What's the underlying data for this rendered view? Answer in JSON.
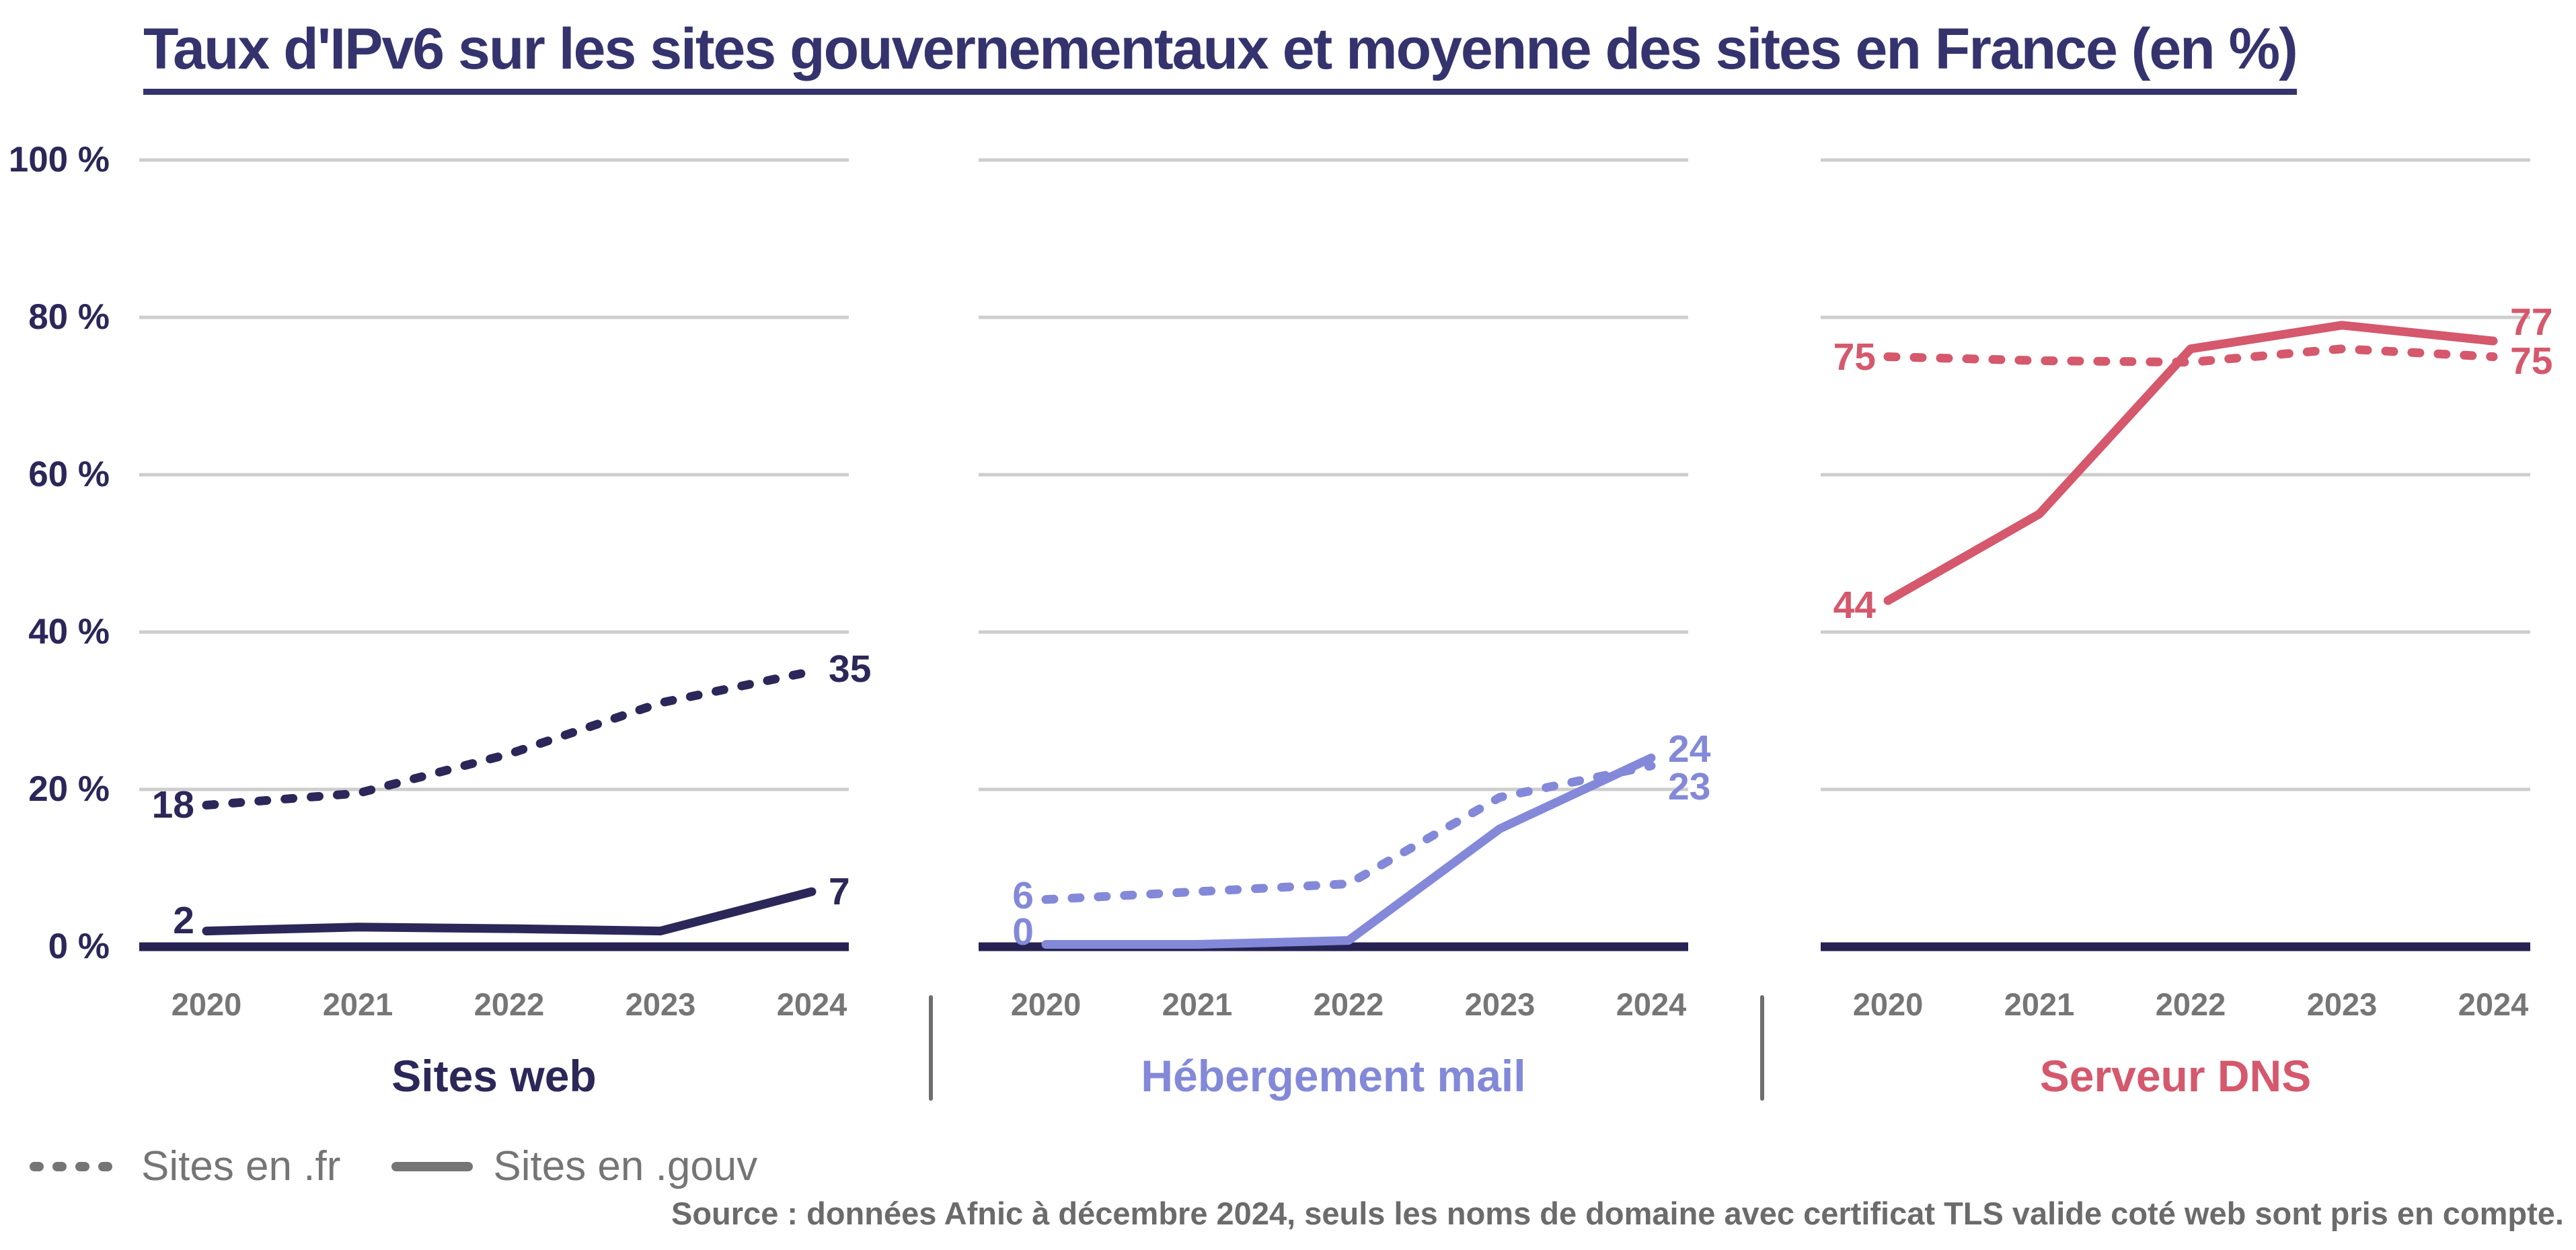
{
  "title": "Taux d'IPv6 sur les sites gouvernementaux et moyenne des sites en France (en %)",
  "y_axis": {
    "ticks": [
      "100 %",
      "80 %",
      "60 %",
      "40 %",
      "20 %",
      "0 %"
    ]
  },
  "legend": {
    "items": [
      {
        "label": "Sites en .fr",
        "marker": "dotted-line"
      },
      {
        "label": "Sites en .gouv",
        "marker": "solid-line"
      }
    ]
  },
  "source": "Source : données Afnic à décembre 2024, seuls les noms de domaine avec certificat TLS valide coté web sont pris en compte.",
  "colors": {
    "title": "#35336E",
    "navy": "#2B2759",
    "periwinkle": "#8389D8",
    "red": "#D5586C",
    "axis": "#262253",
    "grid": "#CDCDCD",
    "year_labels": "#767676",
    "divider": "#6E6E6E",
    "legend_text": "#757575",
    "source_text": "#6B6B6B"
  },
  "chart_data": {
    "type": "line",
    "categories": [
      "2020",
      "2021",
      "2022",
      "2023",
      "2024"
    ],
    "ylim": [
      0,
      100
    ],
    "unit": "%",
    "y_gridlines_percent": [
      100,
      80,
      60,
      40,
      20,
      0
    ],
    "legend_position": "bottom-left",
    "grid": "horizontal-only",
    "panels": [
      {
        "title": "Sites web",
        "color": "#2B2759",
        "series": [
          {
            "name": "Sites en .fr",
            "style": "dotted",
            "values": [
              18,
              19.5,
              24.5,
              31,
              35
            ],
            "first_value_label": "18",
            "last_value_label": "35"
          },
          {
            "name": "Sites en .gouv",
            "style": "solid",
            "values": [
              2,
              2.5,
              2.3,
              2,
              7
            ],
            "first_value_label": "2",
            "last_value_label": "7"
          }
        ]
      },
      {
        "title": "Hébergement mail",
        "color": "#8389D8",
        "series": [
          {
            "name": "Sites en .fr",
            "style": "dotted",
            "values": [
              6,
              7,
              8,
              19,
              23
            ],
            "first_value_label": "6",
            "last_value_label": "23"
          },
          {
            "name": "Sites en .gouv",
            "style": "solid",
            "values": [
              0.3,
              0.3,
              0.8,
              15,
              24
            ],
            "first_value_label": "0",
            "last_value_label": "24"
          }
        ]
      },
      {
        "title": "Serveur DNS",
        "color": "#D5586C",
        "series": [
          {
            "name": "Sites en .fr",
            "style": "dotted",
            "values": [
              75,
              74.5,
              74.3,
              76,
              75
            ],
            "first_value_label": "75",
            "last_value_label": "75"
          },
          {
            "name": "Sites en .gouv",
            "style": "solid",
            "values": [
              44,
              55,
              76,
              79,
              77
            ],
            "first_value_label": "44",
            "last_value_label": "77"
          }
        ]
      }
    ]
  }
}
